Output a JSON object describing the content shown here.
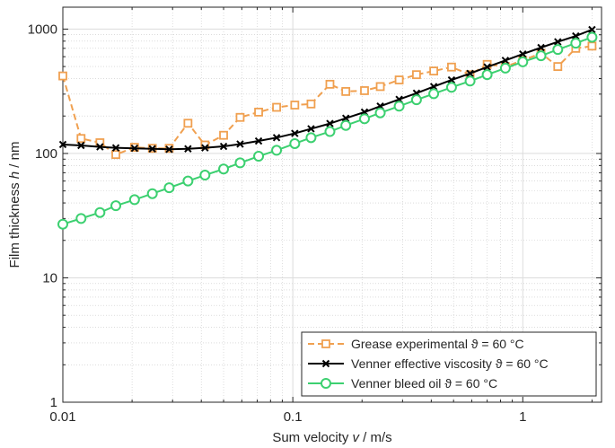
{
  "chart_data": {
    "type": "line",
    "xscale": "log",
    "yscale": "log",
    "xlim": [
      0.01,
      2.2
    ],
    "ylim": [
      1,
      1500
    ],
    "grid": true,
    "xlabel": {
      "pre": "Sum velocity ",
      "sym": "v",
      "post": " / m/s"
    },
    "ylabel": {
      "pre": "Film thickness ",
      "sym": "h",
      "post": " / nm"
    },
    "xticks": [
      0.01,
      0.1,
      1
    ],
    "xtick_labels": [
      "0.01",
      "0.1",
      "1"
    ],
    "yticks": [
      1,
      10,
      100,
      1000
    ],
    "ytick_labels": [
      "1",
      "10",
      "100",
      "1000"
    ],
    "legend_position": "bottom-right",
    "series": [
      {
        "name": "Grease experimental",
        "condition": "ϑ = 60 °C",
        "color": "#F0A050",
        "marker": "square",
        "line": "dashed",
        "x": [
          0.01,
          0.012,
          0.0145,
          0.017,
          0.0205,
          0.0245,
          0.029,
          0.035,
          0.0415,
          0.05,
          0.059,
          0.071,
          0.085,
          0.102,
          0.12,
          0.145,
          0.17,
          0.205,
          0.24,
          0.29,
          0.345,
          0.41,
          0.49,
          0.59,
          0.7,
          0.84,
          1.0,
          1.2,
          1.42,
          1.7,
          2.0
        ],
        "y": [
          420,
          132,
          122,
          98,
          112,
          110,
          110,
          175,
          117,
          140,
          195,
          215,
          235,
          245,
          250,
          360,
          315,
          320,
          345,
          390,
          430,
          460,
          495,
          430,
          520,
          500,
          560,
          640,
          500,
          700,
          730
        ]
      },
      {
        "name": "Venner effective viscosity",
        "condition": "ϑ = 60 °C",
        "color": "#000000",
        "marker": "x",
        "line": "solid",
        "x": [
          0.01,
          0.012,
          0.0145,
          0.017,
          0.0205,
          0.0245,
          0.029,
          0.035,
          0.0415,
          0.05,
          0.059,
          0.071,
          0.085,
          0.102,
          0.12,
          0.145,
          0.17,
          0.205,
          0.24,
          0.29,
          0.345,
          0.41,
          0.49,
          0.59,
          0.7,
          0.84,
          1.0,
          1.2,
          1.42,
          1.7,
          2.0
        ],
        "y": [
          118,
          116,
          113,
          111,
          110,
          109,
          108,
          109,
          111,
          114,
          119,
          126,
          134,
          145,
          158,
          174,
          192,
          215,
          240,
          272,
          305,
          345,
          390,
          440,
          495,
          560,
          630,
          710,
          790,
          880,
          990
        ]
      },
      {
        "name": "Venner bleed oil",
        "condition": "ϑ = 60 °C",
        "color": "#3CD070",
        "marker": "circle",
        "line": "solid",
        "x": [
          0.01,
          0.012,
          0.0145,
          0.017,
          0.0205,
          0.0245,
          0.029,
          0.035,
          0.0415,
          0.05,
          0.059,
          0.071,
          0.085,
          0.102,
          0.12,
          0.145,
          0.17,
          0.205,
          0.24,
          0.29,
          0.345,
          0.41,
          0.49,
          0.59,
          0.7,
          0.84,
          1.0,
          1.2,
          1.42,
          1.7,
          2.0
        ],
        "y": [
          27,
          30,
          33.5,
          38,
          42.5,
          47.5,
          53,
          60,
          67,
          75,
          84,
          95,
          106,
          120,
          134,
          150,
          168,
          190,
          212,
          240,
          270,
          302,
          340,
          382,
          430,
          485,
          545,
          610,
          685,
          770,
          860
        ]
      }
    ]
  }
}
